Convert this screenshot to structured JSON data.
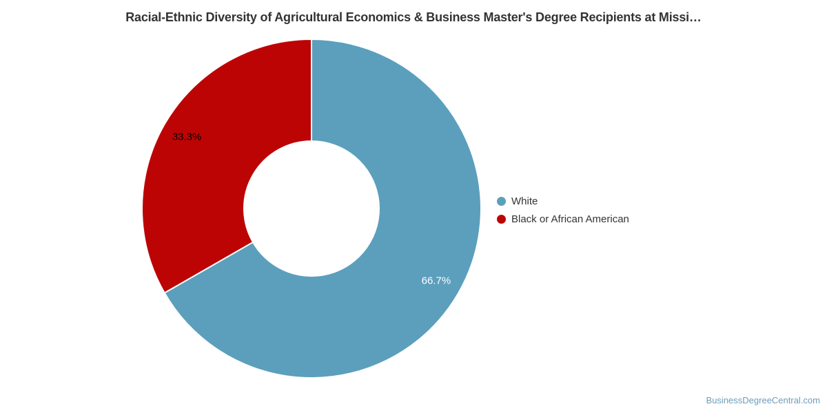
{
  "page": {
    "watermark": {
      "text": "BusinessDegreeCentral.com",
      "color": "#6d9cb9"
    }
  },
  "chart_data": {
    "type": "pie",
    "subtype": "donut",
    "title": "Racial-Ethnic Diversity of Agricultural Economics & Business Master's Degree Recipients at Missi…",
    "start_angle": "12 o'clock",
    "direction": "clockwise",
    "legend_position": "right",
    "slices": [
      {
        "name": "White",
        "value": 66.7,
        "label": "66.7%",
        "color": "#5b9fbd",
        "label_color": "#ffffff"
      },
      {
        "name": "Black or African American",
        "value": 33.3,
        "label": "33.3%",
        "color": "#bd0404",
        "label_color": "#000000"
      }
    ]
  }
}
